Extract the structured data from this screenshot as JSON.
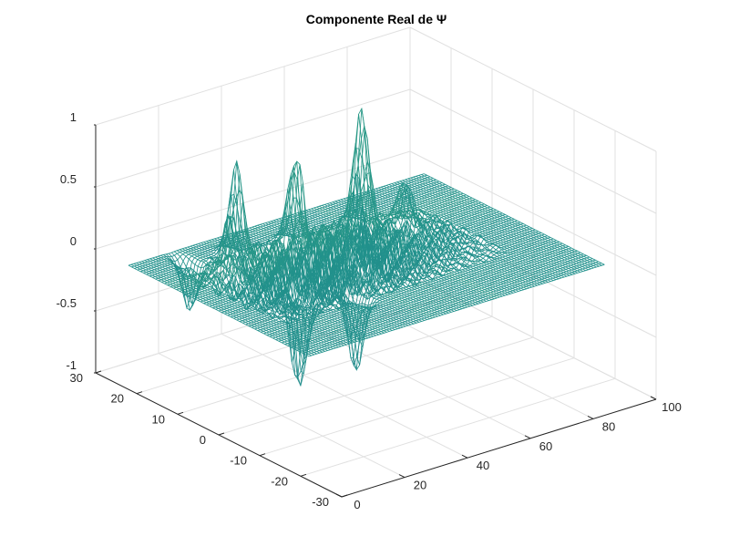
{
  "chart_data": {
    "type": "surface",
    "render": "mesh",
    "title": "Componente Real de Ψ",
    "xlabel": "",
    "ylabel": "",
    "zlabel": "",
    "xlim": [
      0,
      100
    ],
    "ylim": [
      -30,
      30
    ],
    "zlim": [
      -1,
      1
    ],
    "x_ticks": [
      0,
      20,
      40,
      60,
      80,
      100
    ],
    "y_ticks": [
      -30,
      -20,
      -10,
      0,
      10,
      20,
      30
    ],
    "z_ticks": [
      -1,
      -0.5,
      0,
      0.5,
      1
    ],
    "x_tick_labels": [
      "0",
      "20",
      "40",
      "60",
      "80",
      "100"
    ],
    "y_tick_labels": [
      "-30",
      "-20",
      "-10",
      "0",
      "10",
      "20",
      "30"
    ],
    "z_tick_labels": [
      "-1",
      "-0.5",
      "0",
      "0.5",
      "1"
    ],
    "grid": true,
    "colormap": [
      "#440154",
      "#3b528b",
      "#21918c",
      "#5ec962",
      "#fde725"
    ],
    "surface": {
      "x_range": [
        0,
        94
      ],
      "y_range": [
        -22,
        22
      ],
      "baseline_z": 0,
      "peaks": [
        {
          "x": 16,
          "y": 9,
          "z": 0.5
        },
        {
          "x": 24,
          "y": 14,
          "z": 0.72
        },
        {
          "x": 40,
          "y": 12,
          "z": 0.68
        },
        {
          "x": 60,
          "y": 11,
          "z": 0.98
        },
        {
          "x": 50,
          "y": 5,
          "z": 0.45
        },
        {
          "x": 70,
          "y": 8,
          "z": 0.35
        },
        {
          "x": 22,
          "y": -3,
          "z": -0.78
        },
        {
          "x": 33,
          "y": -8,
          "z": -0.62
        },
        {
          "x": 13,
          "y": 17,
          "z": -0.4
        },
        {
          "x": 45,
          "y": -2,
          "z": 0.3
        }
      ]
    }
  }
}
